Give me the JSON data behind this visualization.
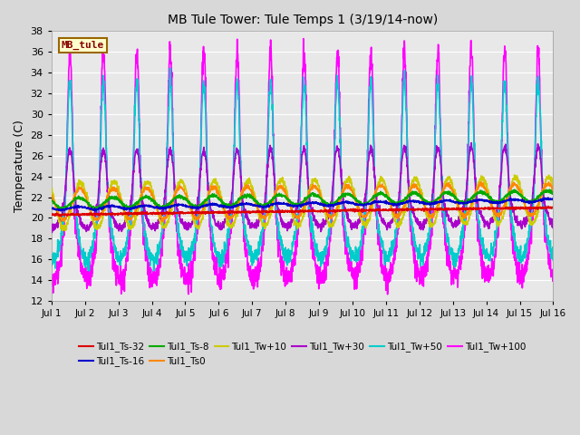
{
  "title": "MB Tule Tower: Tule Temps 1 (3/19/14-now)",
  "ylabel": "Temperature (C)",
  "ylim": [
    12,
    38
  ],
  "yticks": [
    12,
    14,
    16,
    18,
    20,
    22,
    24,
    26,
    28,
    30,
    32,
    34,
    36,
    38
  ],
  "xtick_labels": [
    "Jul 1",
    "Jul 2",
    "Jul 3",
    "Jul 4",
    "Jul 5",
    "Jul 6",
    "Jul 7",
    "Jul 8",
    "Jul 9",
    "Jul 10",
    "Jul 11",
    "Jul 12",
    "Jul 13",
    "Jul 14",
    "Jul 15",
    "Jul 16"
  ],
  "fig_bg": "#d8d8d8",
  "plot_bg": "#e8e8e8",
  "grid_color": "#ffffff",
  "series": [
    {
      "name": "Tul1_Ts-32",
      "color": "#dd0000",
      "lw": 1.2,
      "zorder": 8
    },
    {
      "name": "Tul1_Ts-16",
      "color": "#0000cc",
      "lw": 1.2,
      "zorder": 7
    },
    {
      "name": "Tul1_Ts-8",
      "color": "#00aa00",
      "lw": 1.2,
      "zorder": 6
    },
    {
      "name": "Tul1_Ts0",
      "color": "#ff8800",
      "lw": 1.2,
      "zorder": 5
    },
    {
      "name": "Tul1_Tw+10",
      "color": "#cccc00",
      "lw": 1.2,
      "zorder": 4
    },
    {
      "name": "Tul1_Tw+30",
      "color": "#aa00cc",
      "lw": 1.2,
      "zorder": 3
    },
    {
      "name": "Tul1_Tw+50",
      "color": "#00cccc",
      "lw": 1.2,
      "zorder": 2
    },
    {
      "name": "Tul1_Tw+100",
      "color": "#ff00ff",
      "lw": 1.2,
      "zorder": 1
    }
  ],
  "label_box": {
    "text": "MB_tule",
    "bg": "#ffffcc",
    "border": "#996600",
    "text_color": "#880000",
    "fontsize": 8
  }
}
